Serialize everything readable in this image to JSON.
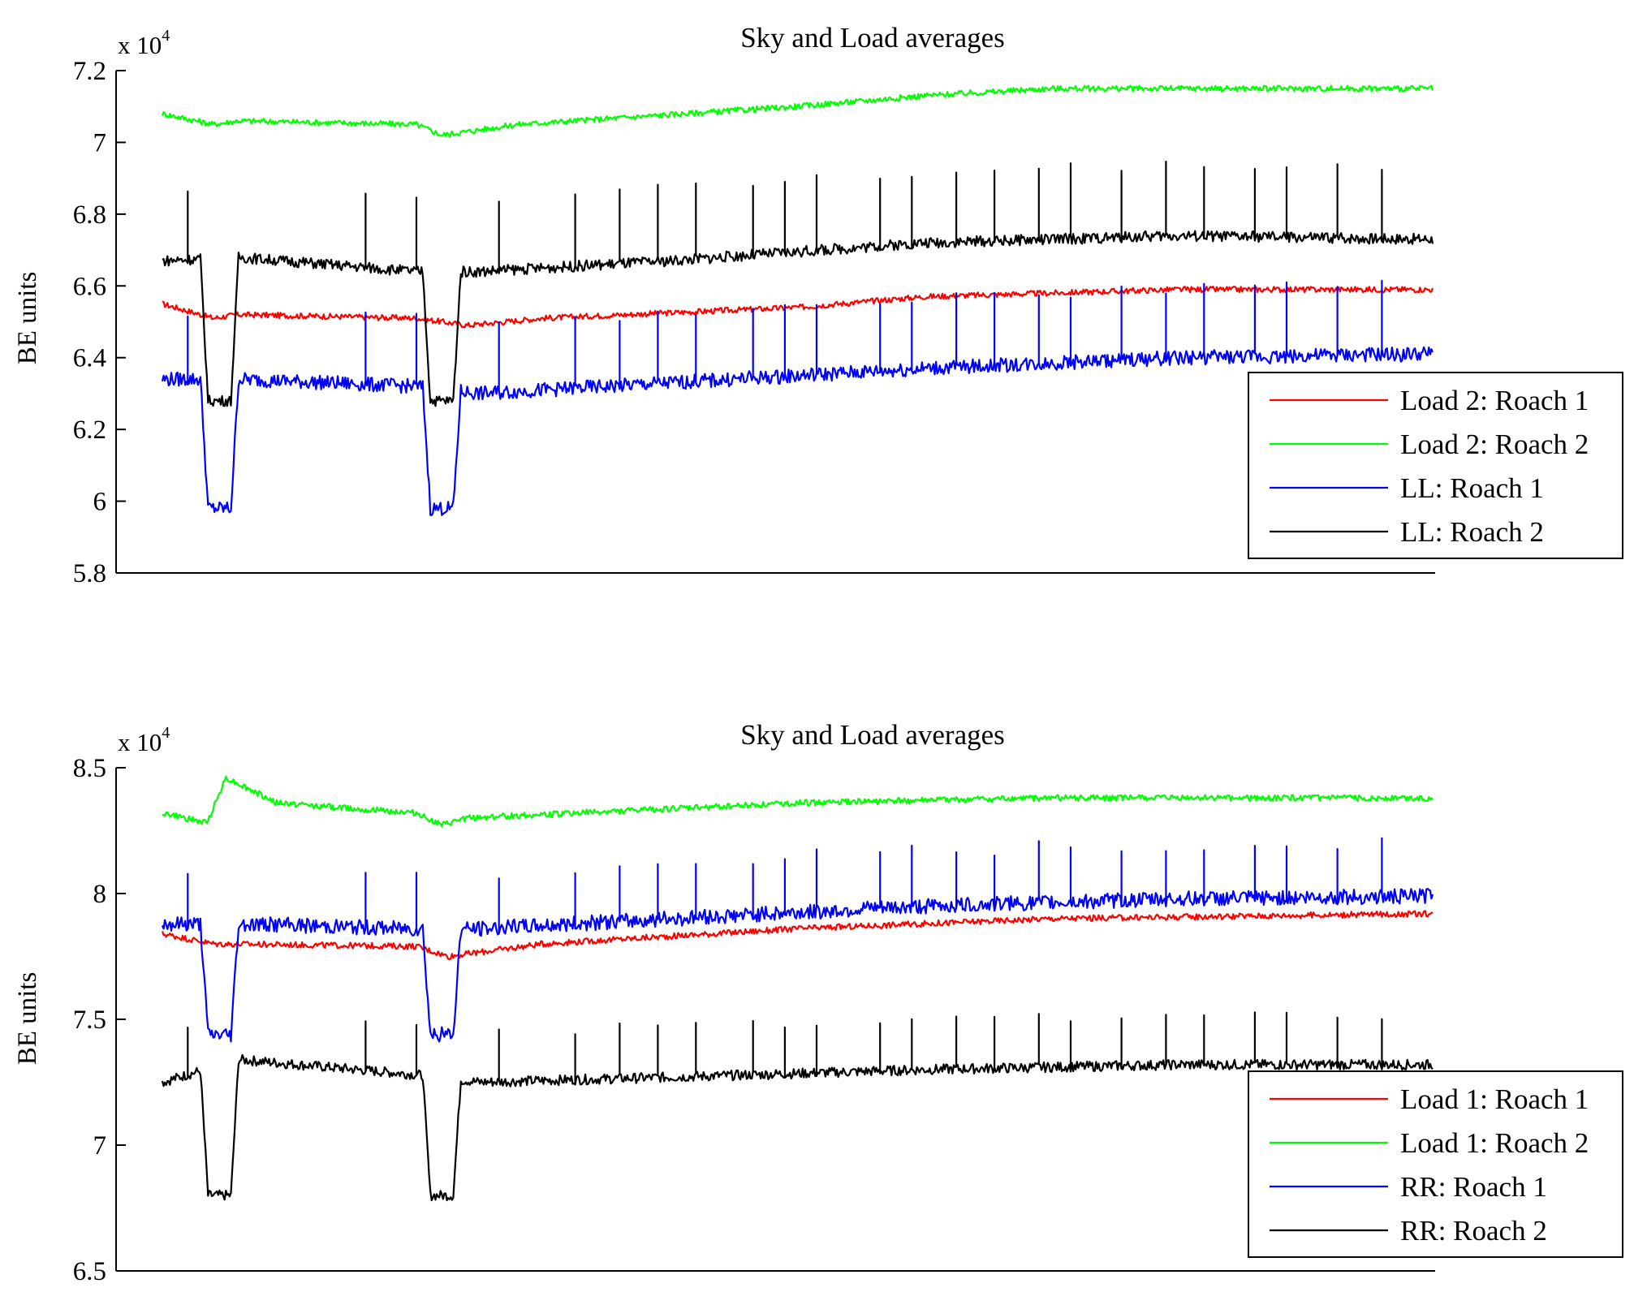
{
  "chart_data": [
    {
      "type": "line",
      "title": "Sky and Load averages",
      "xlabel": "",
      "ylabel": "BE units",
      "y_multiplier": "x 10",
      "y_multiplier_exp": "4",
      "ylim": [
        5.8,
        7.2
      ],
      "xlim": [
        0,
        1000
      ],
      "yticks": [
        "7.2",
        "7",
        "6.8",
        "6.6",
        "6.4",
        "6.2",
        "6",
        "5.8"
      ],
      "ytick_values": [
        7.2,
        7.0,
        6.8,
        6.6,
        6.4,
        6.2,
        6.0,
        5.8
      ],
      "legend_position": "bottom-right",
      "dips": [
        {
          "start": 30,
          "end": 60
        },
        {
          "start": 205,
          "end": 235
        }
      ],
      "spike_positions": [
        20,
        160,
        200,
        265,
        325,
        360,
        390,
        420,
        465,
        490,
        515,
        565,
        590,
        625,
        655,
        690,
        715,
        755,
        790,
        820,
        860,
        885,
        925,
        960
      ],
      "series": [
        {
          "name": "Load 2: Roach 1",
          "color": "#ff0000",
          "waypoints": [
            [
              0,
              6.55
            ],
            [
              40,
              6.51
            ],
            [
              60,
              6.52
            ],
            [
              200,
              6.51
            ],
            [
              240,
              6.49
            ],
            [
              300,
              6.51
            ],
            [
              500,
              6.54
            ],
            [
              600,
              6.57
            ],
            [
              700,
              6.58
            ],
            [
              800,
              6.59
            ],
            [
              1000,
              6.59
            ]
          ],
          "dip_value": null,
          "spike_size": 0,
          "noise": 0.008
        },
        {
          "name": "Load 2: Roach 2",
          "color": "#00ff00",
          "waypoints": [
            [
              0,
              7.08
            ],
            [
              40,
              7.05
            ],
            [
              60,
              7.06
            ],
            [
              200,
              7.05
            ],
            [
              220,
              7.02
            ],
            [
              280,
              7.05
            ],
            [
              500,
              7.1
            ],
            [
              600,
              7.13
            ],
            [
              700,
              7.15
            ],
            [
              1000,
              7.15
            ]
          ],
          "dip_value": null,
          "spike_size": 0,
          "noise": 0.008
        },
        {
          "name": "LL: Roach 1",
          "color": "#0000ff",
          "waypoints": [
            [
              0,
              6.34
            ],
            [
              60,
              6.34
            ],
            [
              200,
              6.32
            ],
            [
              250,
              6.3
            ],
            [
              400,
              6.33
            ],
            [
              600,
              6.37
            ],
            [
              800,
              6.4
            ],
            [
              1000,
              6.41
            ]
          ],
          "dip_value": 5.98,
          "spike_size": 0.19,
          "noise": 0.02
        },
        {
          "name": "LL: Roach 2",
          "color": "#000000",
          "waypoints": [
            [
              0,
              6.67
            ],
            [
              60,
              6.68
            ],
            [
              200,
              6.64
            ],
            [
              250,
              6.64
            ],
            [
              400,
              6.67
            ],
            [
              600,
              6.72
            ],
            [
              800,
              6.74
            ],
            [
              1000,
              6.73
            ]
          ],
          "dip_value": 6.28,
          "spike_size": 0.2,
          "noise": 0.015
        }
      ]
    },
    {
      "type": "line",
      "title": "Sky and Load averages",
      "xlabel": "",
      "ylabel": "BE units",
      "y_multiplier": "x 10",
      "y_multiplier_exp": "4",
      "ylim": [
        6.5,
        8.5
      ],
      "xlim": [
        0,
        1000
      ],
      "yticks": [
        "8.5",
        "8",
        "7.5",
        "7",
        "6.5"
      ],
      "ytick_values": [
        8.5,
        8.0,
        7.5,
        7.0,
        6.5
      ],
      "legend_position": "bottom-right",
      "dips": [
        {
          "start": 30,
          "end": 60
        },
        {
          "start": 205,
          "end": 235
        }
      ],
      "spike_positions": [
        20,
        160,
        200,
        265,
        325,
        360,
        390,
        420,
        465,
        490,
        515,
        565,
        590,
        625,
        655,
        690,
        715,
        755,
        790,
        820,
        860,
        885,
        925,
        960
      ],
      "series": [
        {
          "name": "Load 1: Roach 1",
          "color": "#ff0000",
          "waypoints": [
            [
              0,
              7.84
            ],
            [
              40,
              7.8
            ],
            [
              200,
              7.79
            ],
            [
              225,
              7.75
            ],
            [
              300,
              7.8
            ],
            [
              500,
              7.86
            ],
            [
              700,
              7.9
            ],
            [
              1000,
              7.92
            ]
          ],
          "dip_value": null,
          "spike_size": 0,
          "noise": 0.012
        },
        {
          "name": "Load 1: Roach 2",
          "color": "#00ff00",
          "waypoints": [
            [
              0,
              8.32
            ],
            [
              35,
              8.28
            ],
            [
              50,
              8.46
            ],
            [
              90,
              8.36
            ],
            [
              200,
              8.32
            ],
            [
              220,
              8.27
            ],
            [
              240,
              8.3
            ],
            [
              500,
              8.36
            ],
            [
              700,
              8.38
            ],
            [
              1000,
              8.38
            ]
          ],
          "dip_value": null,
          "spike_size": 0,
          "noise": 0.012
        },
        {
          "name": "RR: Roach 1",
          "color": "#0000ff",
          "waypoints": [
            [
              0,
              7.88
            ],
            [
              60,
              7.88
            ],
            [
              200,
              7.86
            ],
            [
              250,
              7.86
            ],
            [
              400,
              7.9
            ],
            [
              600,
              7.95
            ],
            [
              800,
              7.98
            ],
            [
              1000,
              7.99
            ]
          ],
          "dip_value": 7.44,
          "spike_size": 0.22,
          "noise": 0.03
        },
        {
          "name": "RR: Roach 2",
          "color": "#000000",
          "waypoints": [
            [
              0,
              7.25
            ],
            [
              60,
              7.34
            ],
            [
              200,
              7.28
            ],
            [
              250,
              7.25
            ],
            [
              400,
              7.27
            ],
            [
              600,
              7.3
            ],
            [
              800,
              7.32
            ],
            [
              1000,
              7.32
            ]
          ],
          "dip_value": 6.8,
          "spike_size": 0.2,
          "noise": 0.02
        }
      ]
    }
  ]
}
